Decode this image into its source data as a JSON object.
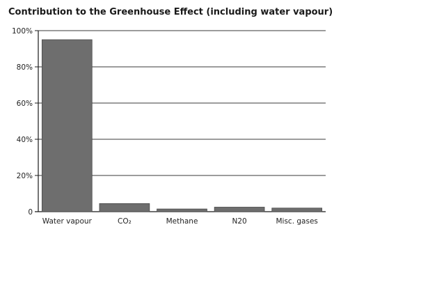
{
  "chart_data": {
    "type": "bar",
    "title": "Contribution to the Greenhouse Effect (including water vapour)",
    "xlabel": "",
    "ylabel": "",
    "categories": [
      "Water vapour",
      "CO₂",
      "Methane",
      "N20",
      "Misc. gases"
    ],
    "values": [
      95,
      4.5,
      1.5,
      2.5,
      2
    ],
    "value_unit": "%",
    "ylim": [
      0,
      100
    ],
    "yticks": [
      0,
      20,
      40,
      60,
      80,
      100
    ],
    "ytick_labels": [
      "0",
      "20%",
      "40%",
      "60%",
      "80%",
      "100%"
    ],
    "grid": true,
    "colors": {
      "bar": "#6e6e6e",
      "bar_edge": "#4a4a4a",
      "grid": "#3a3a3a",
      "axis": "#1a1a1a"
    }
  }
}
